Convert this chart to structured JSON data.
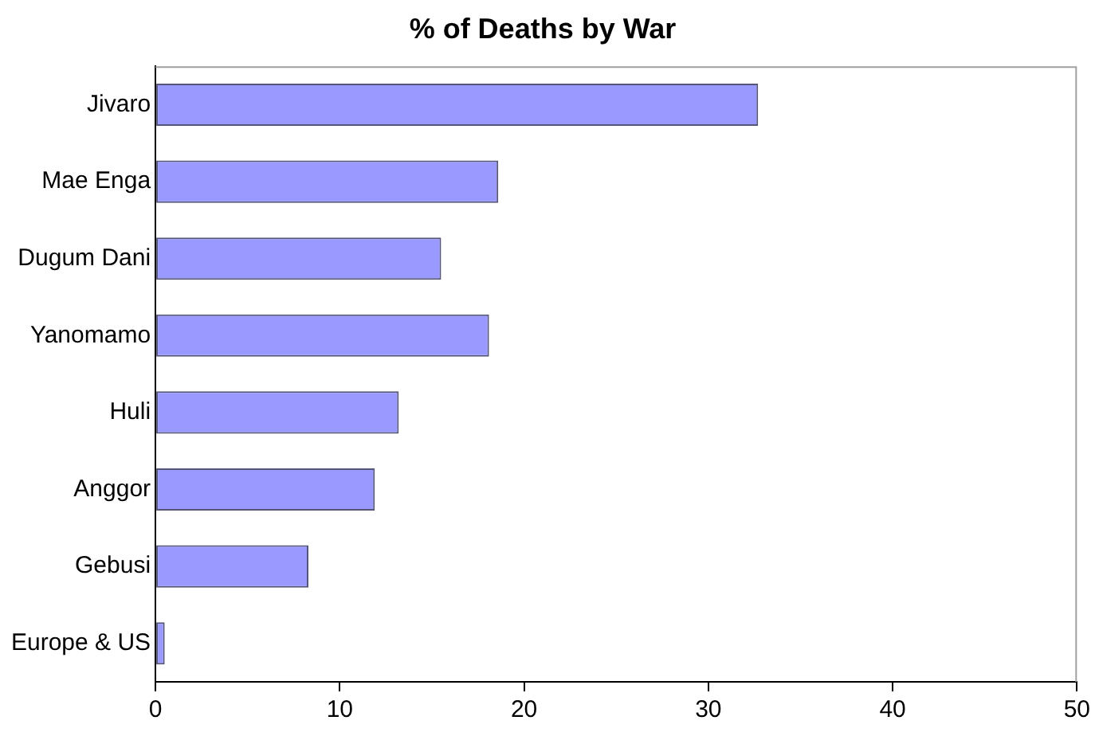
{
  "chart_data": {
    "type": "bar",
    "orientation": "horizontal",
    "title": "% of Deaths by War",
    "categories": [
      "Jivaro",
      "Mae Enga",
      "Dugum Dani",
      "Yanomamo",
      "Huli",
      "Anggor",
      "Gebusi",
      "Europe & US"
    ],
    "values": [
      32.7,
      18.6,
      15.5,
      18.1,
      13.2,
      11.9,
      8.3,
      0.5
    ],
    "color": "#9999ff",
    "xlim": [
      0,
      50
    ],
    "xticks": [
      0,
      10,
      20,
      30,
      40,
      50
    ],
    "grid": false,
    "legend": false
  }
}
